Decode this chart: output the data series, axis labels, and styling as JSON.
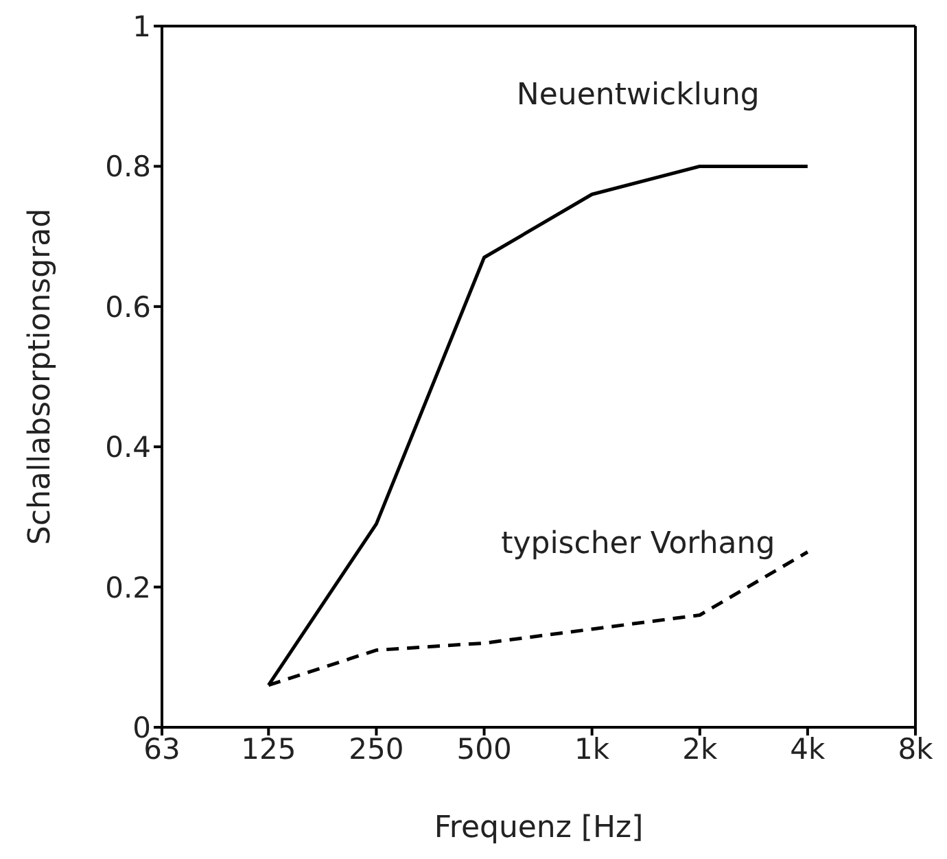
{
  "chart_data": {
    "type": "line",
    "xlabel": "Frequenz [Hz]",
    "ylabel": "Schallabsorptionsgrad",
    "x": [
      125,
      250,
      500,
      1000,
      2000,
      4000
    ],
    "series": [
      {
        "name": "Neuentwicklung",
        "color": "#000000",
        "line_style": "solid",
        "values": [
          0.06,
          0.29,
          0.67,
          0.76,
          0.8,
          0.8
        ]
      },
      {
        "name": "typischer Vorhang",
        "color": "#000000",
        "line_style": "dashed",
        "values": [
          0.06,
          0.11,
          0.12,
          0.14,
          0.16,
          0.25
        ]
      }
    ],
    "log": "x",
    "xlim": [
      63,
      8000
    ],
    "xticks": [
      63,
      125,
      250,
      500,
      {
        "value": 1000,
        "label": "1k"
      },
      {
        "value": 2000,
        "label": "2k"
      },
      {
        "value": 4000,
        "label": "4k"
      },
      {
        "value": 8000,
        "label": "8k"
      }
    ],
    "ylim": [
      0,
      1
    ],
    "yticks": [
      0,
      0.2,
      0.4,
      0.6,
      0.8,
      1
    ],
    "grid": false,
    "legend": false,
    "marker": "none"
  }
}
